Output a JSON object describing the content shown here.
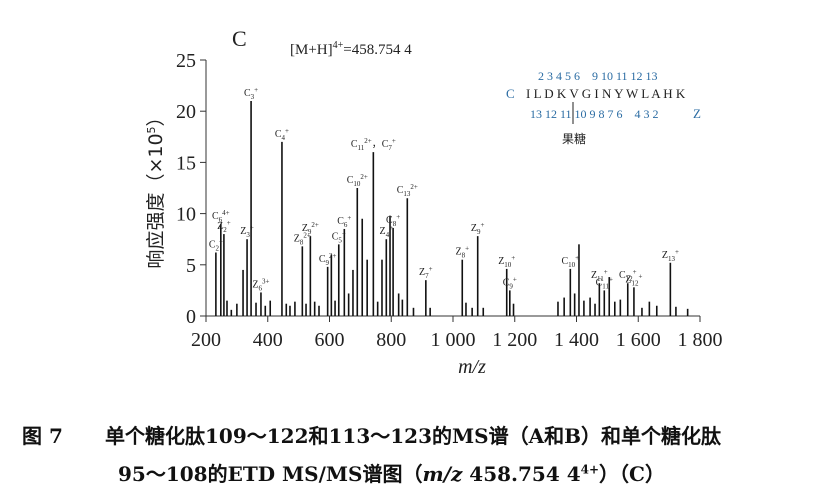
{
  "chart_data": {
    "type": "bar",
    "panel_label": "C",
    "precursor_label": "[M+H]",
    "precursor_charge": "4+",
    "precursor_value": "=458.754 4",
    "xlabel": "m/z",
    "ylabel": "响应强度（×10",
    "ylabel_exp": "5",
    "ylabel_close": "）",
    "xlim": [
      200,
      1800
    ],
    "ylim": [
      0,
      25
    ],
    "xticks": [
      200,
      400,
      600,
      800,
      1000,
      1200,
      1400,
      1600,
      1800
    ],
    "xtick_labels": [
      "200",
      "400",
      "600",
      "800",
      "1 000",
      "1 200",
      "1 400",
      "1 600",
      "1 800"
    ],
    "yticks": [
      0,
      5,
      10,
      15,
      20,
      25
    ],
    "yticks_labels": [
      "0",
      "5",
      "10",
      "15",
      "20",
      "25"
    ],
    "peaks": [
      {
        "x": 232,
        "y": 6.2,
        "label": "C",
        "sub": "2",
        "sup": "+"
      },
      {
        "x": 248,
        "y": 9.0,
        "label": "C",
        "sub": "6",
        "sup": "4+"
      },
      {
        "x": 258,
        "y": 8.0,
        "label": "Z",
        "sub": "2",
        "sup": "+"
      },
      {
        "x": 268,
        "y": 1.5
      },
      {
        "x": 282,
        "y": 0.6
      },
      {
        "x": 300,
        "y": 1.2
      },
      {
        "x": 320,
        "y": 4.5
      },
      {
        "x": 333,
        "y": 7.5,
        "label": "Z",
        "sub": "3",
        "sup": "+"
      },
      {
        "x": 346,
        "y": 21.0,
        "label": "C",
        "sub": "3",
        "sup": "+"
      },
      {
        "x": 362,
        "y": 1.3
      },
      {
        "x": 378,
        "y": 2.3,
        "label": "Z",
        "sub": "6",
        "sup": "3+"
      },
      {
        "x": 392,
        "y": 1.0
      },
      {
        "x": 408,
        "y": 1.5
      },
      {
        "x": 446,
        "y": 17.0,
        "label": "C",
        "sub": "4",
        "sup": "+"
      },
      {
        "x": 460,
        "y": 1.2
      },
      {
        "x": 472,
        "y": 1.0
      },
      {
        "x": 488,
        "y": 1.4
      },
      {
        "x": 512,
        "y": 6.8,
        "label": "Z",
        "sub": "8",
        "sup": "2+"
      },
      {
        "x": 524,
        "y": 1.2
      },
      {
        "x": 538,
        "y": 7.8,
        "label": "Z",
        "sub": "9",
        "sup": "2+"
      },
      {
        "x": 552,
        "y": 1.4
      },
      {
        "x": 566,
        "y": 1.0
      },
      {
        "x": 594,
        "y": 4.8,
        "label": "C",
        "sub": "9",
        "sup": "2+"
      },
      {
        "x": 606,
        "y": 6.0
      },
      {
        "x": 618,
        "y": 1.5
      },
      {
        "x": 630,
        "y": 7.0,
        "label": "C",
        "sub": "5",
        "sup": "+"
      },
      {
        "x": 648,
        "y": 8.5,
        "label": "C",
        "sub": "6",
        "sup": "+"
      },
      {
        "x": 662,
        "y": 2.2
      },
      {
        "x": 676,
        "y": 4.5
      },
      {
        "x": 690,
        "y": 12.5,
        "label": "C",
        "sub": "10",
        "sup": "2+"
      },
      {
        "x": 706,
        "y": 9.5
      },
      {
        "x": 722,
        "y": 5.5
      },
      {
        "x": 742,
        "y": 16.0,
        "label": "C",
        "sub": "11",
        "sup": "2+",
        "extra": "，C",
        "extra_sub": "7",
        "extra_sup": "+"
      },
      {
        "x": 756,
        "y": 1.4
      },
      {
        "x": 770,
        "y": 5.5
      },
      {
        "x": 784,
        "y": 7.5,
        "label": "Z",
        "sub": "4",
        "sup": "+"
      },
      {
        "x": 796,
        "y": 9.8
      },
      {
        "x": 806,
        "y": 8.6,
        "label": "C",
        "sub": "8",
        "sup": "+"
      },
      {
        "x": 824,
        "y": 2.2
      },
      {
        "x": 836,
        "y": 1.6
      },
      {
        "x": 852,
        "y": 11.5,
        "label": "C",
        "sub": "13",
        "sup": "2+"
      },
      {
        "x": 872,
        "y": 0.8
      },
      {
        "x": 912,
        "y": 3.5,
        "label": "Z",
        "sub": "7",
        "sup": "+"
      },
      {
        "x": 926,
        "y": 0.8
      },
      {
        "x": 1030,
        "y": 5.5,
        "label": "Z",
        "sub": "8",
        "sup": "+"
      },
      {
        "x": 1042,
        "y": 1.3
      },
      {
        "x": 1062,
        "y": 0.8
      },
      {
        "x": 1080,
        "y": 7.8,
        "label": "Z",
        "sub": "9",
        "sup": "+"
      },
      {
        "x": 1098,
        "y": 0.8
      },
      {
        "x": 1174,
        "y": 4.6,
        "label": "Z",
        "sub": "10",
        "sup": "+"
      },
      {
        "x": 1184,
        "y": 2.5,
        "label": "C",
        "sub": "9",
        "sup": "+"
      },
      {
        "x": 1196,
        "y": 1.2
      },
      {
        "x": 1340,
        "y": 1.4
      },
      {
        "x": 1360,
        "y": 1.8
      },
      {
        "x": 1380,
        "y": 4.6,
        "label": "C",
        "sub": "10",
        "sup": "+"
      },
      {
        "x": 1394,
        "y": 2.2
      },
      {
        "x": 1408,
        "y": 7.0
      },
      {
        "x": 1424,
        "y": 1.5
      },
      {
        "x": 1444,
        "y": 1.8
      },
      {
        "x": 1460,
        "y": 1.2
      },
      {
        "x": 1474,
        "y": 3.2,
        "label": "Z",
        "sub": "11",
        "sup": "+"
      },
      {
        "x": 1490,
        "y": 2.5,
        "label": "C",
        "sub": "11",
        "sup": "+"
      },
      {
        "x": 1506,
        "y": 3.8
      },
      {
        "x": 1524,
        "y": 1.4
      },
      {
        "x": 1542,
        "y": 1.6
      },
      {
        "x": 1566,
        "y": 3.2,
        "label": "C",
        "sub": "12",
        "sup": "+"
      },
      {
        "x": 1586,
        "y": 2.8,
        "label": "Z",
        "sub": "12",
        "sup": "+"
      },
      {
        "x": 1612,
        "y": 0.8
      },
      {
        "x": 1636,
        "y": 1.4
      },
      {
        "x": 1660,
        "y": 1.0
      },
      {
        "x": 1704,
        "y": 5.2,
        "label": "Z",
        "sub": "13",
        "sup": "+"
      },
      {
        "x": 1722,
        "y": 0.9
      },
      {
        "x": 1760,
        "y": 0.7
      }
    ],
    "sequence_inset": {
      "c_ion_numbers": "2 3 4 5 6    9 10 11 12 13",
      "c_label": "C",
      "sequence": "I L D K V G I N Y W L A H K",
      "z_ion_numbers": "13 12 11 10 9 8 7 6    4 3 2",
      "z_label": "Z",
      "glycan_label": "果糖",
      "number_color": "#2b6ca3"
    }
  },
  "caption": {
    "figure_number": "图 7",
    "line1": "单个糖化肽109～122和113～123的MS谱（A和B）和单个糖化肽",
    "line2_prefix": "95～108的ETD MS/MS谱图（",
    "line2_mz": "m/z",
    "line2_value": " 458.754 4",
    "line2_charge": "4+",
    "line2_suffix": "）（C）"
  }
}
